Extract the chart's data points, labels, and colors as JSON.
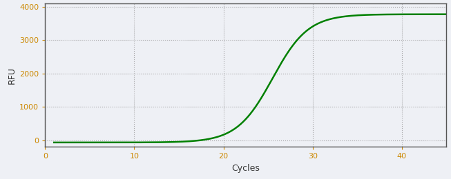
{
  "xlabel": "Cycles",
  "ylabel": "RFU",
  "xlim": [
    0,
    45
  ],
  "ylim": [
    -200,
    4100
  ],
  "xticks": [
    0,
    10,
    20,
    30,
    40
  ],
  "yticks": [
    0,
    1000,
    2000,
    3000,
    4000
  ],
  "line_color": "#008000",
  "line_width": 1.8,
  "background_color": "#eef0f5",
  "plot_bg_color": "#eef0f5",
  "grid_color": "#888888",
  "tick_color": "#cc8800",
  "label_color": "#333333",
  "spine_color": "#555555",
  "sigmoid_L": 3850,
  "sigmoid_k": 0.5,
  "sigmoid_x0": 25.5,
  "sigmoid_baseline": -70,
  "x_start": 1,
  "x_end": 45,
  "figsize": [
    6.53,
    2.6
  ],
  "dpi": 100
}
